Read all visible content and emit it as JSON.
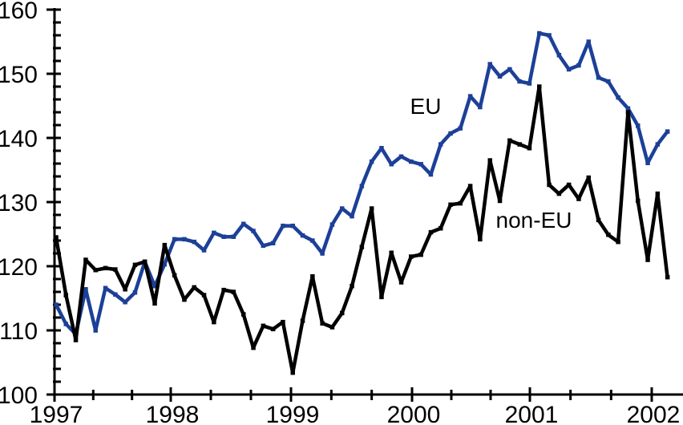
{
  "chart_data": {
    "type": "line",
    "title": "",
    "background_color": "#ffffff",
    "axis_color": "#000000",
    "grid": false,
    "legend_position": "inline-annotations",
    "x": {
      "start": "1997-01",
      "end": "2002-03",
      "frequency": "monthly",
      "tick_labels": [
        "1997",
        "1998",
        "1999",
        "2000",
        "2001",
        "2002"
      ],
      "minor_ticks_per_year": 2
    },
    "y": {
      "min": 100,
      "max": 160,
      "major_tick_step": 10,
      "minor_tick_step": 2,
      "tick_labels": [
        "100",
        "110",
        "120",
        "130",
        "140",
        "150",
        "160"
      ]
    },
    "series": [
      {
        "name": "EU",
        "color": "#1c4098",
        "annotation": {
          "text": "EU"
        },
        "values": [
          114.0,
          111.0,
          109.4,
          116.4,
          110.0,
          116.6,
          115.6,
          114.4,
          115.9,
          120.7,
          116.9,
          120.3,
          124.2,
          124.2,
          123.8,
          122.5,
          125.2,
          124.6,
          124.6,
          126.6,
          125.5,
          123.2,
          123.6,
          126.3,
          126.3,
          124.8,
          124.0,
          122.0,
          126.5,
          129.0,
          127.8,
          132.5,
          136.3,
          138.4,
          135.9,
          137.1,
          136.3,
          135.9,
          134.3,
          139.0,
          140.7,
          141.5,
          146.5,
          144.8,
          151.5,
          149.6,
          150.7,
          148.8,
          148.5,
          156.3,
          156.0,
          152.9,
          150.7,
          151.3,
          155.0,
          149.4,
          148.8,
          146.3,
          144.6,
          141.9,
          136.1,
          139.0,
          141.0
        ]
      },
      {
        "name": "non-EU",
        "color": "#000000",
        "annotation": {
          "text": "non-EU"
        },
        "values": [
          124.5,
          115.5,
          108.5,
          121.0,
          119.4,
          119.7,
          119.5,
          116.4,
          120.2,
          120.7,
          114.2,
          123.3,
          118.6,
          114.8,
          116.7,
          115.5,
          111.3,
          116.3,
          116.0,
          112.5,
          107.3,
          110.7,
          110.2,
          111.3,
          103.4,
          111.5,
          118.4,
          111.1,
          110.5,
          112.7,
          116.9,
          123.0,
          129.0,
          115.2,
          122.1,
          117.5,
          121.5,
          121.8,
          125.3,
          125.9,
          129.6,
          129.8,
          132.5,
          124.2,
          136.5,
          130.2,
          139.6,
          139.0,
          138.4,
          148.0,
          132.7,
          131.3,
          132.7,
          130.5,
          133.8,
          127.2,
          124.9,
          123.8,
          144.0,
          130.2,
          121.0,
          131.3,
          118.3
        ]
      }
    ]
  }
}
